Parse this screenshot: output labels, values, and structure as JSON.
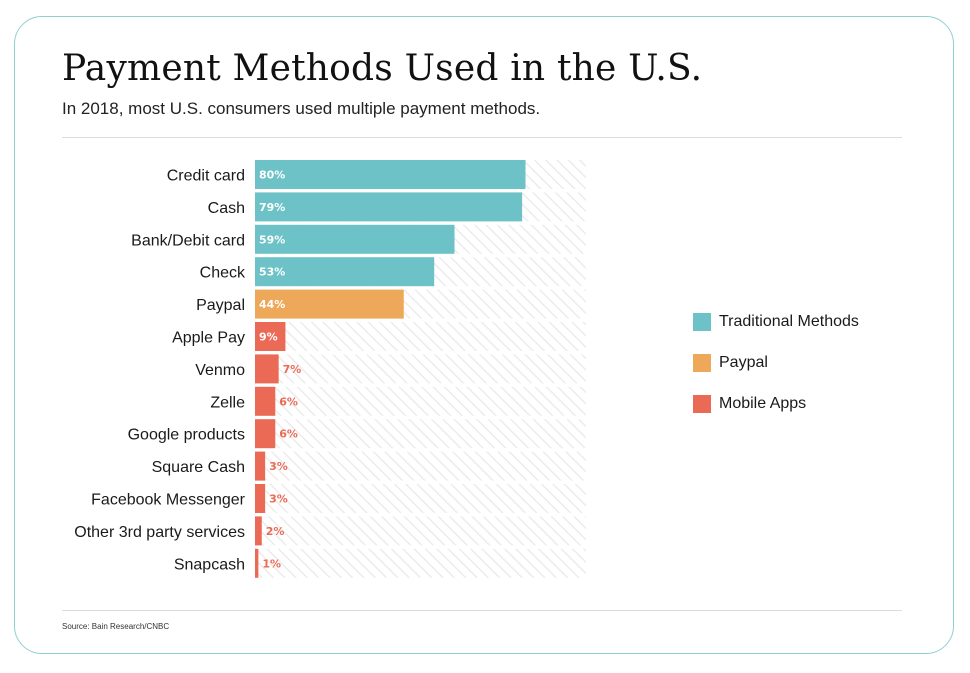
{
  "header": {
    "title": "Payment Methods Used in the U.S.",
    "subtitle": "In 2018, most U.S. consumers used multiple payment methods."
  },
  "footer": {
    "source": "Source: Bain Research/CNBC"
  },
  "colors": {
    "traditional": "#6cc2c6",
    "paypal": "#eea85a",
    "mobile": "#ea6a55",
    "track_stripe": "#ececec"
  },
  "legend": [
    {
      "label": "Traditional Methods",
      "color_key": "traditional"
    },
    {
      "label": "Paypal",
      "color_key": "paypal"
    },
    {
      "label": "Mobile Apps",
      "color_key": "mobile"
    }
  ],
  "chart_data": {
    "type": "bar",
    "orientation": "horizontal",
    "title": "Payment Methods Used in the U.S.",
    "subtitle": "In 2018, most U.S. consumers used multiple payment methods.",
    "xlim": [
      0,
      100
    ],
    "unit": "%",
    "legend_position": "right",
    "categories": [
      "Credit card",
      "Cash",
      "Bank/Debit card",
      "Check",
      "Paypal",
      "Apple Pay",
      "Venmo",
      "Zelle",
      "Google products",
      "Square Cash",
      "Facebook Messenger",
      "Other 3rd party services",
      "Snapcash"
    ],
    "values": [
      80,
      79,
      59,
      53,
      44,
      9,
      7,
      6,
      6,
      3,
      3,
      2,
      1
    ],
    "value_labels": [
      "80%",
      "79%",
      "59%",
      "53%",
      "44%",
      "9%",
      "7%",
      "6%",
      "6%",
      "3%",
      "3%",
      "2%",
      "1%"
    ],
    "groups": [
      "Traditional Methods",
      "Traditional Methods",
      "Traditional Methods",
      "Traditional Methods",
      "Paypal",
      "Mobile Apps",
      "Mobile Apps",
      "Mobile Apps",
      "Mobile Apps",
      "Mobile Apps",
      "Mobile Apps",
      "Mobile Apps",
      "Mobile Apps"
    ]
  }
}
